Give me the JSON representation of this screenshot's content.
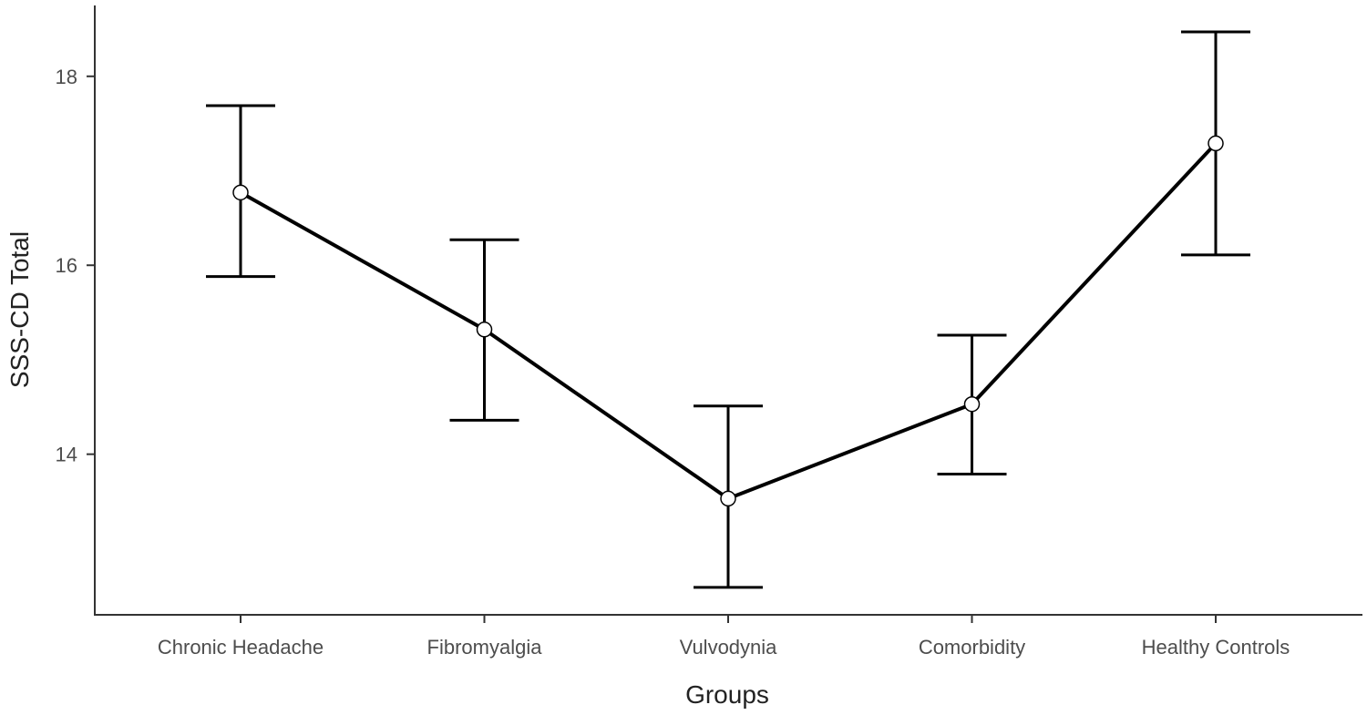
{
  "chart_data": {
    "type": "line",
    "title": "",
    "xlabel": "Groups",
    "ylabel": "SSS-CD Total",
    "categories": [
      "Chronic Headache",
      "Fibromyalgia",
      "Vulvodynia",
      "Comorbidity",
      "Healthy Controls"
    ],
    "series": [
      {
        "values": [
          16.77,
          15.32,
          13.53,
          14.53,
          17.29
        ],
        "error_lower": [
          15.88,
          14.36,
          12.59,
          13.79,
          16.11
        ],
        "error_upper": [
          17.69,
          16.27,
          14.51,
          15.26,
          18.47
        ]
      }
    ],
    "yticks": [
      14,
      16,
      18
    ],
    "ylim": [
      12.3,
      18.75
    ],
    "grid": false,
    "legend": "none",
    "line_color": "#000000",
    "marker_fill": "#ffffff"
  }
}
